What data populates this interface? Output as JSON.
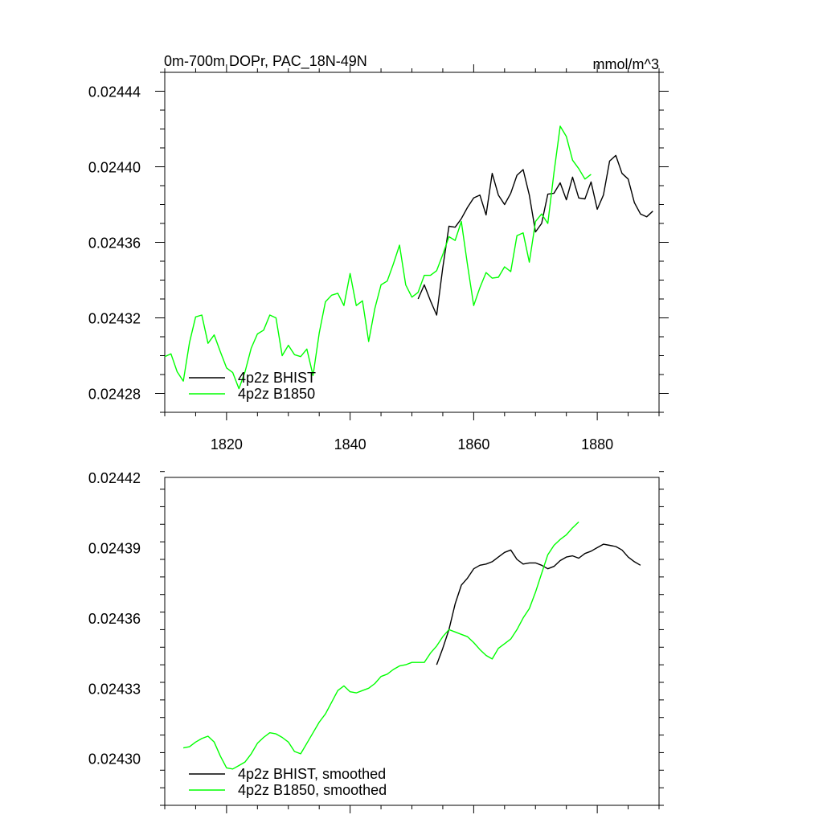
{
  "colors": {
    "bhist": "#000000",
    "b1850": "#00ff00",
    "axis": "#000000",
    "background": "#ffffff"
  },
  "chart_data": [
    {
      "type": "line",
      "title": "0m-700m DOPr, PAC_18N-49N",
      "units": "mmol/m^3",
      "xlim": [
        1810,
        1890
      ],
      "ylim": [
        0.02427,
        0.02445
      ],
      "x_ticks": [
        1820,
        1840,
        1860,
        1880
      ],
      "x_tick_labels": [
        "1820",
        "1840",
        "1860",
        "1880"
      ],
      "y_ticks": [
        0.02428,
        0.02432,
        0.02436,
        0.0244,
        0.02444
      ],
      "y_tick_labels": [
        "0.02428",
        "0.02432",
        "0.02436",
        "0.02440",
        "0.02444"
      ],
      "legend_position": "bottom-left",
      "grid": false,
      "series": [
        {
          "name": "4p2z BHIST",
          "color": "#000000",
          "x": [
            1851,
            1852,
            1853,
            1854,
            1855,
            1856,
            1857,
            1858,
            1859,
            1860,
            1861,
            1862,
            1863,
            1864,
            1865,
            1866,
            1867,
            1868,
            1869,
            1870,
            1871,
            1872,
            1873,
            1874,
            1875,
            1876,
            1877,
            1878,
            1879,
            1880,
            1881,
            1882,
            1883,
            1884,
            1885,
            1886,
            1887,
            1888,
            1889
          ],
          "y": [
            0.02433,
            0.0243375,
            0.024329,
            0.0243215,
            0.0243465,
            0.0243685,
            0.024368,
            0.0243725,
            0.0243785,
            0.0243835,
            0.024385,
            0.0243745,
            0.0243965,
            0.024385,
            0.02438,
            0.024386,
            0.0243955,
            0.0243985,
            0.024385,
            0.0243655,
            0.02437,
            0.0243855,
            0.024386,
            0.0243915,
            0.0243825,
            0.0243945,
            0.0243835,
            0.024383,
            0.024392,
            0.0243775,
            0.024385,
            0.024403,
            0.024406,
            0.0243965,
            0.0243935,
            0.024381,
            0.024375,
            0.0243735,
            0.0243765
          ]
        },
        {
          "name": "4p2z B1850",
          "color": "#00ff00",
          "x": [
            1810,
            1811,
            1812,
            1813,
            1814,
            1815,
            1816,
            1817,
            1818,
            1819,
            1820,
            1821,
            1822,
            1823,
            1824,
            1825,
            1826,
            1827,
            1828,
            1829,
            1830,
            1831,
            1832,
            1833,
            1834,
            1835,
            1836,
            1837,
            1838,
            1839,
            1840,
            1841,
            1842,
            1843,
            1844,
            1845,
            1846,
            1847,
            1848,
            1849,
            1850,
            1851,
            1852,
            1853,
            1854,
            1855,
            1856,
            1857,
            1858,
            1859,
            1860,
            1861,
            1862,
            1863,
            1864,
            1865,
            1866,
            1867,
            1868,
            1869,
            1870,
            1871,
            1872,
            1873,
            1874,
            1875,
            1876,
            1877,
            1878,
            1879
          ],
          "y": [
            0.0242995,
            0.024301,
            0.0242915,
            0.0242865,
            0.024307,
            0.0243205,
            0.0243215,
            0.0243065,
            0.024311,
            0.024302,
            0.0242935,
            0.024291,
            0.0242825,
            0.0242915,
            0.024304,
            0.0243115,
            0.0243135,
            0.0243215,
            0.02432,
            0.0243,
            0.0243055,
            0.0243005,
            0.0242995,
            0.0243035,
            0.0242895,
            0.024312,
            0.0243285,
            0.024332,
            0.024333,
            0.0243265,
            0.0243435,
            0.0243265,
            0.024329,
            0.0243075,
            0.024325,
            0.0243375,
            0.0243395,
            0.0243485,
            0.0243585,
            0.0243375,
            0.024331,
            0.0243335,
            0.0243425,
            0.0243425,
            0.024345,
            0.0243535,
            0.024363,
            0.024361,
            0.024371,
            0.024348,
            0.0243265,
            0.024336,
            0.024344,
            0.024341,
            0.0243415,
            0.024347,
            0.0243445,
            0.0243635,
            0.024365,
            0.0243495,
            0.024371,
            0.024375,
            0.02437,
            0.024397,
            0.0244215,
            0.024416,
            0.0244035,
            0.024399,
            0.0243935,
            0.024396
          ]
        }
      ]
    },
    {
      "type": "line",
      "title": "",
      "units": "",
      "xlim": [
        1810,
        1890
      ],
      "ylim": [
        0.02428,
        0.02442
      ],
      "x_ticks": [
        1820,
        1840,
        1860,
        1880
      ],
      "x_tick_labels": [],
      "y_ticks": [
        0.0243,
        0.02433,
        0.02436,
        0.02439,
        0.02442
      ],
      "y_tick_labels": [
        "0.02430",
        "0.02433",
        "0.02436",
        "0.02439",
        "0.02442"
      ],
      "legend_position": "bottom-left",
      "grid": false,
      "series": [
        {
          "name": "4p2z BHIST, smoothed",
          "color": "#000000",
          "x": [
            1854,
            1855,
            1856,
            1857,
            1858,
            1859,
            1860,
            1861,
            1862,
            1863,
            1864,
            1865,
            1866,
            1867,
            1868,
            1869,
            1870,
            1871,
            1872,
            1873,
            1874,
            1875,
            1876,
            1877,
            1878,
            1879,
            1880,
            1881,
            1882,
            1883,
            1884,
            1885,
            1886,
            1887
          ],
          "y": [
            0.02434,
            0.024347,
            0.024355,
            0.024366,
            0.024374,
            0.024377,
            0.024381,
            0.0243825,
            0.024383,
            0.024384,
            0.024386,
            0.024388,
            0.024389,
            0.024385,
            0.024383,
            0.0243835,
            0.0243835,
            0.0243825,
            0.024381,
            0.024382,
            0.0243845,
            0.024386,
            0.0243865,
            0.0243855,
            0.0243875,
            0.0243885,
            0.02439,
            0.0243915,
            0.024391,
            0.0243905,
            0.024389,
            0.024386,
            0.024384,
            0.0243825
          ]
        },
        {
          "name": "4p2z B1850, smoothed",
          "color": "#00ff00",
          "x": [
            1813,
            1814,
            1815,
            1816,
            1817,
            1818,
            1819,
            1820,
            1821,
            1822,
            1823,
            1824,
            1825,
            1826,
            1827,
            1828,
            1829,
            1830,
            1831,
            1832,
            1833,
            1834,
            1835,
            1836,
            1837,
            1838,
            1839,
            1840,
            1841,
            1842,
            1843,
            1844,
            1845,
            1846,
            1847,
            1848,
            1849,
            1850,
            1851,
            1852,
            1853,
            1854,
            1855,
            1856,
            1857,
            1858,
            1859,
            1860,
            1861,
            1862,
            1863,
            1864,
            1865,
            1866,
            1867,
            1868,
            1869,
            1870,
            1871,
            1872,
            1873,
            1874,
            1875,
            1876,
            1877
          ],
          "y": [
            0.0243045,
            0.024305,
            0.024307,
            0.0243085,
            0.0243095,
            0.024307,
            0.024301,
            0.024296,
            0.0242955,
            0.024297,
            0.0242985,
            0.024302,
            0.0243065,
            0.024309,
            0.024311,
            0.0243105,
            0.024309,
            0.024307,
            0.024303,
            0.024302,
            0.0243065,
            0.024311,
            0.0243155,
            0.024319,
            0.024324,
            0.024329,
            0.024331,
            0.0243285,
            0.024328,
            0.024329,
            0.02433,
            0.024332,
            0.024335,
            0.024336,
            0.024338,
            0.0243395,
            0.02434,
            0.024341,
            0.024341,
            0.024341,
            0.024345,
            0.024348,
            0.024352,
            0.024355,
            0.024354,
            0.024353,
            0.024352,
            0.0243495,
            0.0243465,
            0.024344,
            0.0243425,
            0.024347,
            0.024349,
            0.024351,
            0.024355,
            0.02436,
            0.024364,
            0.024371,
            0.024379,
            0.024387,
            0.024391,
            0.0243935,
            0.0243955,
            0.0243985,
            0.024401
          ]
        }
      ]
    }
  ]
}
